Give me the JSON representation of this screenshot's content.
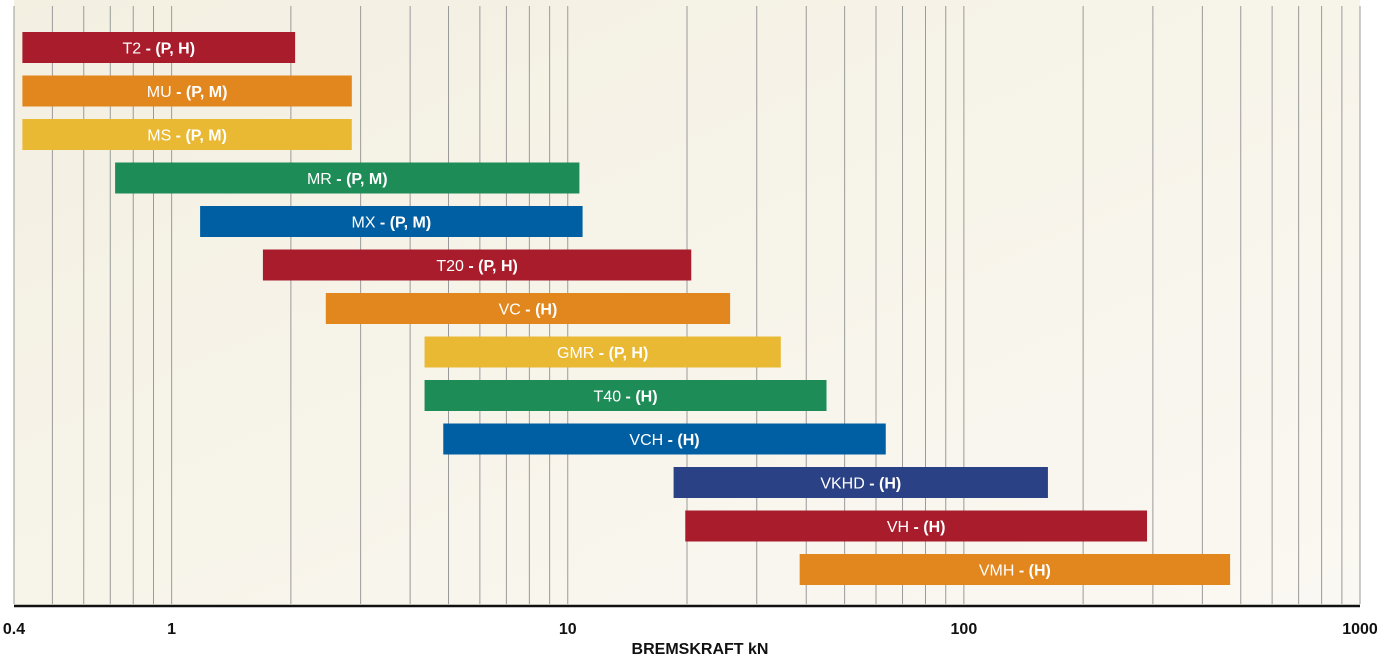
{
  "chart_data": {
    "type": "bar",
    "orientation": "horizontal-range",
    "x_scale": "log",
    "xlim": [
      0.4,
      1000
    ],
    "xlabel": "BREMSKRAFT kN",
    "x_tick_labels": [
      {
        "value": 0.4,
        "label": "0.4"
      },
      {
        "value": 1,
        "label": "1"
      },
      {
        "value": 10,
        "label": "10"
      },
      {
        "value": 100,
        "label": "100"
      },
      {
        "value": 1000,
        "label": "1000"
      }
    ],
    "gridlines": [
      0.5,
      0.6,
      0.7,
      0.8,
      0.9,
      1,
      2,
      3,
      4,
      5,
      6,
      7,
      8,
      9,
      10,
      20,
      30,
      40,
      50,
      60,
      70,
      80,
      90,
      100,
      200,
      300,
      400,
      500,
      600,
      700,
      800,
      900,
      1000
    ],
    "grid": true,
    "bars": [
      {
        "name": "T2",
        "suffix": "(P, H)",
        "start": 0.42,
        "end": 2.05,
        "color": "#a81c2b"
      },
      {
        "name": "MU",
        "suffix": "(P, M)",
        "start": 0.42,
        "end": 2.85,
        "color": "#e2861e"
      },
      {
        "name": "MS",
        "suffix": "(P, M)",
        "start": 0.42,
        "end": 2.85,
        "color": "#e9b933"
      },
      {
        "name": "MR",
        "suffix": "(P, M)",
        "start": 0.72,
        "end": 10.7,
        "color": "#1d8c57"
      },
      {
        "name": "MX",
        "suffix": "(P, M)",
        "start": 1.18,
        "end": 10.9,
        "color": "#005fa2"
      },
      {
        "name": "T20",
        "suffix": "(P, H)",
        "start": 1.7,
        "end": 20.5,
        "color": "#a81c2b"
      },
      {
        "name": "VC",
        "suffix": "(H)",
        "start": 2.45,
        "end": 25.7,
        "color": "#e2861e"
      },
      {
        "name": "GMR",
        "suffix": "(P, H)",
        "start": 4.35,
        "end": 34.5,
        "color": "#e9b933"
      },
      {
        "name": "T40",
        "suffix": "(H)",
        "start": 4.35,
        "end": 45,
        "color": "#1d8c57"
      },
      {
        "name": "VCH",
        "suffix": "(H)",
        "start": 4.85,
        "end": 63.5,
        "color": "#005fa2"
      },
      {
        "name": "VKHD",
        "suffix": "(H)",
        "start": 18.5,
        "end": 163,
        "color": "#2b4185"
      },
      {
        "name": "VH",
        "suffix": "(H)",
        "start": 19.8,
        "end": 290,
        "color": "#a81c2b"
      },
      {
        "name": "VMH",
        "suffix": "(H)",
        "start": 38.5,
        "end": 470,
        "color": "#e2861e"
      }
    ]
  }
}
